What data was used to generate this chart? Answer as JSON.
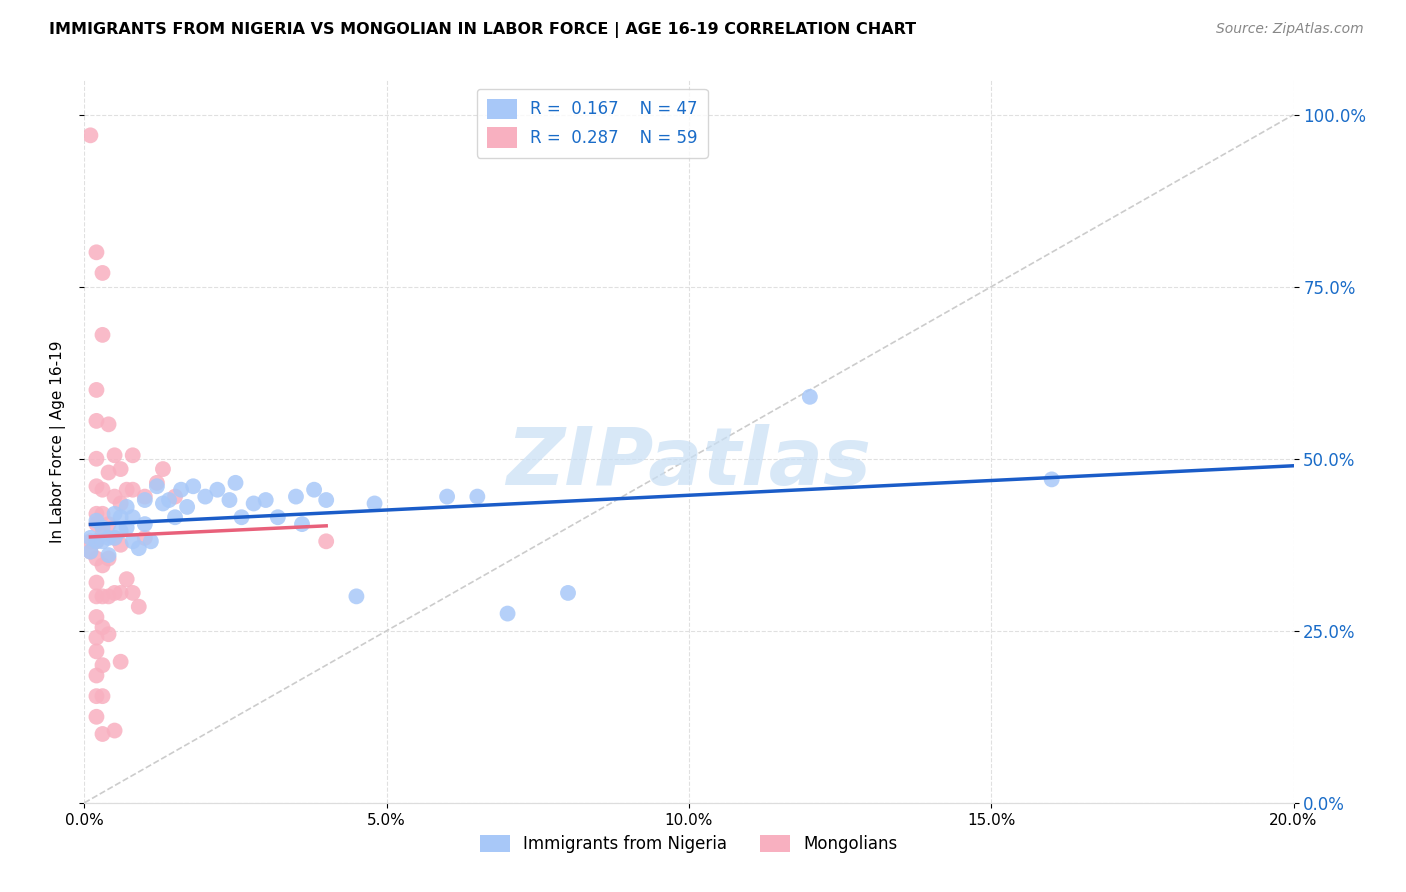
{
  "title": "IMMIGRANTS FROM NIGERIA VS MONGOLIAN IN LABOR FORCE | AGE 16-19 CORRELATION CHART",
  "source": "Source: ZipAtlas.com",
  "xlim": [
    0.0,
    0.2
  ],
  "ylim": [
    0.0,
    1.05
  ],
  "ylabel": "In Labor Force | Age 16-19",
  "nigeria_R": 0.167,
  "nigeria_N": 47,
  "mongolian_R": 0.287,
  "mongolian_N": 59,
  "nigeria_color": "#a8c8f8",
  "mongolian_color": "#f8b0c0",
  "nigeria_line_color": "#1a5cc8",
  "mongolian_line_color": "#e8607a",
  "diagonal_color": "#cccccc",
  "watermark": "ZIPatlas",
  "watermark_color": "#c8dff5",
  "nigeria_scatter": [
    [
      0.001,
      0.385
    ],
    [
      0.001,
      0.365
    ],
    [
      0.002,
      0.41
    ],
    [
      0.002,
      0.38
    ],
    [
      0.003,
      0.4
    ],
    [
      0.003,
      0.38
    ],
    [
      0.004,
      0.385
    ],
    [
      0.004,
      0.36
    ],
    [
      0.005,
      0.42
    ],
    [
      0.005,
      0.385
    ],
    [
      0.006,
      0.415
    ],
    [
      0.006,
      0.395
    ],
    [
      0.007,
      0.43
    ],
    [
      0.007,
      0.4
    ],
    [
      0.008,
      0.415
    ],
    [
      0.008,
      0.38
    ],
    [
      0.009,
      0.37
    ],
    [
      0.01,
      0.44
    ],
    [
      0.01,
      0.405
    ],
    [
      0.011,
      0.38
    ],
    [
      0.012,
      0.46
    ],
    [
      0.013,
      0.435
    ],
    [
      0.014,
      0.44
    ],
    [
      0.015,
      0.415
    ],
    [
      0.016,
      0.455
    ],
    [
      0.017,
      0.43
    ],
    [
      0.018,
      0.46
    ],
    [
      0.02,
      0.445
    ],
    [
      0.022,
      0.455
    ],
    [
      0.024,
      0.44
    ],
    [
      0.025,
      0.465
    ],
    [
      0.026,
      0.415
    ],
    [
      0.028,
      0.435
    ],
    [
      0.03,
      0.44
    ],
    [
      0.032,
      0.415
    ],
    [
      0.035,
      0.445
    ],
    [
      0.036,
      0.405
    ],
    [
      0.038,
      0.455
    ],
    [
      0.04,
      0.44
    ],
    [
      0.045,
      0.3
    ],
    [
      0.048,
      0.435
    ],
    [
      0.06,
      0.445
    ],
    [
      0.065,
      0.445
    ],
    [
      0.07,
      0.275
    ],
    [
      0.08,
      0.305
    ],
    [
      0.12,
      0.59
    ],
    [
      0.16,
      0.47
    ]
  ],
  "mongolian_scatter": [
    [
      0.001,
      0.97
    ],
    [
      0.001,
      0.38
    ],
    [
      0.001,
      0.365
    ],
    [
      0.002,
      0.8
    ],
    [
      0.002,
      0.6
    ],
    [
      0.002,
      0.555
    ],
    [
      0.002,
      0.5
    ],
    [
      0.002,
      0.46
    ],
    [
      0.002,
      0.42
    ],
    [
      0.002,
      0.405
    ],
    [
      0.002,
      0.38
    ],
    [
      0.002,
      0.355
    ],
    [
      0.002,
      0.32
    ],
    [
      0.002,
      0.3
    ],
    [
      0.002,
      0.27
    ],
    [
      0.002,
      0.24
    ],
    [
      0.002,
      0.22
    ],
    [
      0.002,
      0.185
    ],
    [
      0.002,
      0.155
    ],
    [
      0.002,
      0.125
    ],
    [
      0.003,
      0.77
    ],
    [
      0.003,
      0.68
    ],
    [
      0.003,
      0.455
    ],
    [
      0.003,
      0.42
    ],
    [
      0.003,
      0.39
    ],
    [
      0.003,
      0.345
    ],
    [
      0.003,
      0.3
    ],
    [
      0.003,
      0.255
    ],
    [
      0.003,
      0.2
    ],
    [
      0.003,
      0.155
    ],
    [
      0.003,
      0.1
    ],
    [
      0.004,
      0.55
    ],
    [
      0.004,
      0.48
    ],
    [
      0.004,
      0.405
    ],
    [
      0.004,
      0.355
    ],
    [
      0.004,
      0.3
    ],
    [
      0.004,
      0.245
    ],
    [
      0.005,
      0.505
    ],
    [
      0.005,
      0.445
    ],
    [
      0.005,
      0.385
    ],
    [
      0.005,
      0.305
    ],
    [
      0.005,
      0.105
    ],
    [
      0.006,
      0.485
    ],
    [
      0.006,
      0.435
    ],
    [
      0.006,
      0.375
    ],
    [
      0.006,
      0.305
    ],
    [
      0.006,
      0.205
    ],
    [
      0.007,
      0.455
    ],
    [
      0.007,
      0.325
    ],
    [
      0.008,
      0.505
    ],
    [
      0.008,
      0.455
    ],
    [
      0.008,
      0.305
    ],
    [
      0.009,
      0.285
    ],
    [
      0.01,
      0.445
    ],
    [
      0.01,
      0.385
    ],
    [
      0.012,
      0.465
    ],
    [
      0.013,
      0.485
    ],
    [
      0.015,
      0.445
    ],
    [
      0.04,
      0.38
    ]
  ]
}
